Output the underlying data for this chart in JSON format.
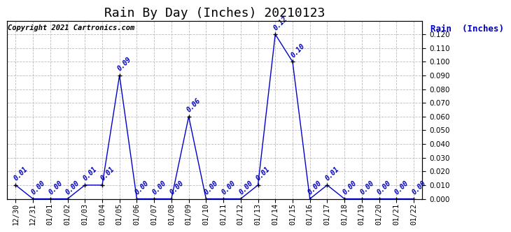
{
  "title": "Rain By Day (Inches) 20210123",
  "copyright": "Copyright 2021 Cartronics.com",
  "legend_label": "Rain  (Inches)",
  "dates": [
    "12/30",
    "12/31",
    "01/01",
    "01/02",
    "01/03",
    "01/04",
    "01/05",
    "01/06",
    "01/07",
    "01/08",
    "01/09",
    "01/10",
    "01/11",
    "01/12",
    "01/13",
    "01/14",
    "01/15",
    "01/16",
    "01/17",
    "01/18",
    "01/19",
    "01/20",
    "01/21",
    "01/22"
  ],
  "values": [
    0.01,
    0.0,
    0.0,
    0.0,
    0.01,
    0.01,
    0.09,
    0.0,
    0.0,
    0.0,
    0.06,
    0.0,
    0.0,
    0.0,
    0.01,
    0.12,
    0.1,
    0.0,
    0.01,
    0.0,
    0.0,
    0.0,
    0.0,
    0.0
  ],
  "line_color": "#0000cc",
  "marker_color": "black",
  "label_color": "#0000bb",
  "grid_color": "#bbbbbb",
  "bg_color": "#ffffff",
  "ylim": [
    0.0,
    0.13
  ],
  "yticks": [
    0.0,
    0.01,
    0.02,
    0.03,
    0.04,
    0.05,
    0.06,
    0.07,
    0.08,
    0.09,
    0.1,
    0.11,
    0.12
  ],
  "title_fontsize": 13,
  "label_fontsize": 7,
  "copyright_fontsize": 7.5,
  "legend_fontsize": 9,
  "tick_fontsize": 7.5
}
